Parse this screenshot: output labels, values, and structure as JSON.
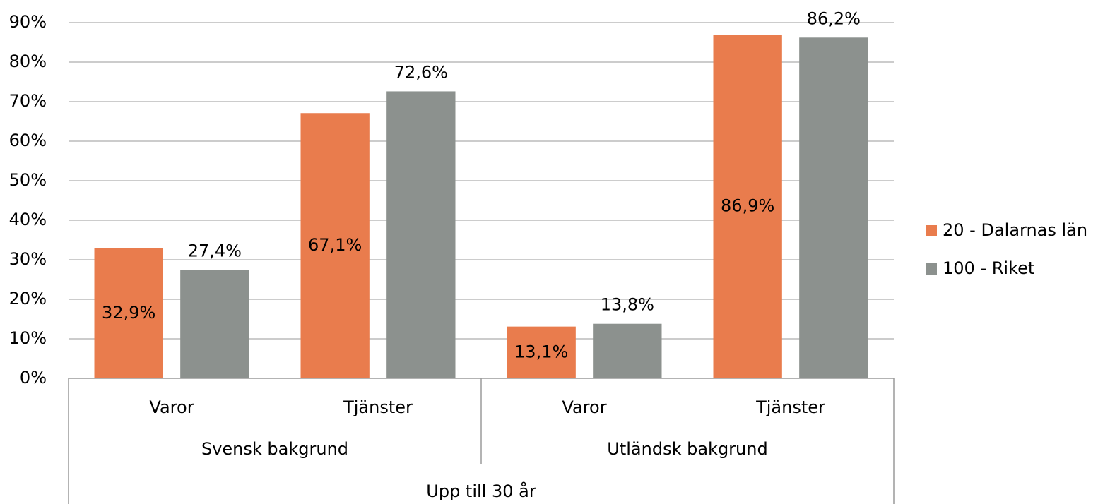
{
  "chart_data": {
    "type": "bar",
    "groups": [
      {
        "name": "Svensk bakgrund",
        "categories": [
          "Varor",
          "Tjänster"
        ]
      },
      {
        "name": "Utländsk bakgrund",
        "categories": [
          "Varor",
          "Tjänster"
        ]
      }
    ],
    "supergroup": "Upp till 30 år",
    "series": [
      {
        "name": "20 - Dalarnas län",
        "color": "#e97c4d",
        "values": [
          32.9,
          67.1,
          13.1,
          86.9
        ],
        "value_labels": [
          "32,9%",
          "67,1%",
          "13,1%",
          "86,9%"
        ],
        "label_position": "inside"
      },
      {
        "name": "100 - Riket",
        "color": "#8c918e",
        "values": [
          27.4,
          72.6,
          13.8,
          86.2
        ],
        "value_labels": [
          "27,4%",
          "72,6%",
          "13,8%",
          "86,2%"
        ],
        "label_position": "above"
      }
    ],
    "ylim": [
      0,
      90
    ],
    "yticks": [
      {
        "value": 0,
        "label": "0%"
      },
      {
        "value": 10,
        "label": "10%"
      },
      {
        "value": 20,
        "label": "20%"
      },
      {
        "value": 30,
        "label": "30%"
      },
      {
        "value": 40,
        "label": "40%"
      },
      {
        "value": 50,
        "label": "50%"
      },
      {
        "value": 60,
        "label": "60%"
      },
      {
        "value": 70,
        "label": "70%"
      },
      {
        "value": 80,
        "label": "80%"
      },
      {
        "value": 90,
        "label": "90%"
      }
    ],
    "grid": true,
    "legend": "right"
  }
}
